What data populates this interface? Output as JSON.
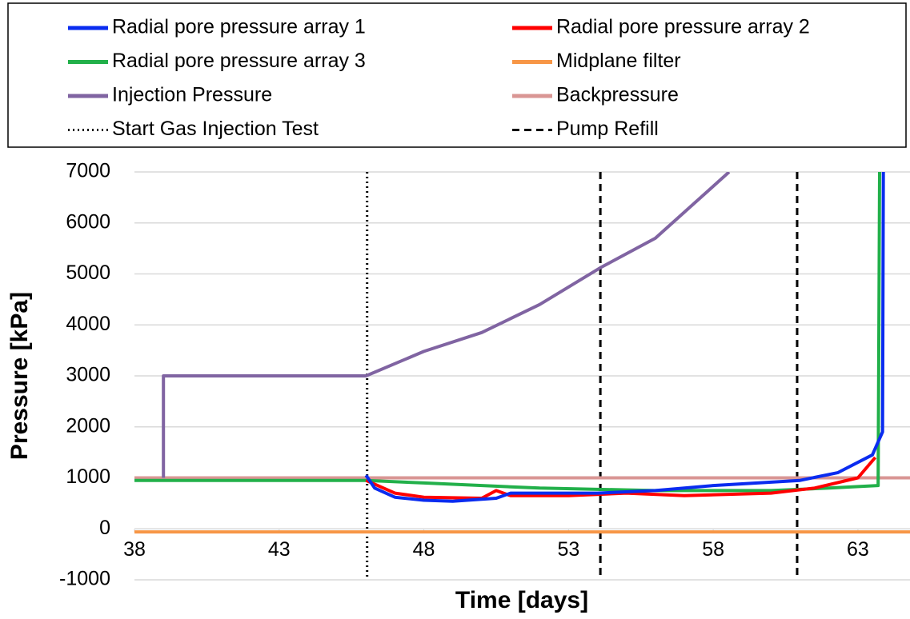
{
  "chart_data": {
    "type": "line",
    "x_label": "Time [days]",
    "y_label": "Pressure [kPa]",
    "xlim": [
      38,
      64.8
    ],
    "ylim": [
      -1000,
      7000
    ],
    "xticks": [
      38,
      43,
      48,
      53,
      58,
      63
    ],
    "yticks": [
      -1000,
      0,
      1000,
      2000,
      3000,
      4000,
      5000,
      6000,
      7000
    ],
    "grid": true,
    "legend": "top",
    "series": [
      {
        "name": "Radial pore pressure array 1",
        "color": "#0a2cf0",
        "x": [
          46.0,
          46.3,
          47,
          48,
          49,
          50.5,
          51,
          54,
          56,
          58,
          61,
          62.3,
          63.5,
          63.85,
          63.88
        ],
        "values": [
          1050,
          800,
          620,
          560,
          540,
          600,
          700,
          700,
          750,
          850,
          950,
          1100,
          1450,
          1900,
          7000
        ]
      },
      {
        "name": "Radial pore pressure array 2",
        "color": "#ff0000",
        "x": [
          46.0,
          47,
          48,
          50,
          50.5,
          51,
          53,
          55,
          57,
          60,
          61.5,
          63,
          63.6
        ],
        "values": [
          950,
          700,
          620,
          600,
          750,
          650,
          650,
          700,
          650,
          700,
          800,
          1000,
          1400
        ]
      },
      {
        "name": "Radial pore pressure array 3",
        "color": "#22b04a",
        "x": [
          38,
          46,
          48,
          52,
          56,
          60,
          62,
          63.7,
          63.75
        ],
        "values": [
          950,
          950,
          900,
          800,
          750,
          750,
          800,
          850,
          7000
        ]
      },
      {
        "name": "Midplane filter",
        "color": "#f79646",
        "x": [
          38,
          64.8
        ],
        "values": [
          -60,
          -60
        ]
      },
      {
        "name": "Injection Pressure",
        "color": "#8064a2",
        "x": [
          39.0,
          39.0,
          46.0,
          48,
          50,
          52,
          54.1,
          56,
          58.55
        ],
        "values": [
          1000,
          3000,
          3000,
          3480,
          3850,
          4400,
          5120,
          5700,
          7000
        ]
      },
      {
        "name": "Backpressure",
        "color": "#d99694",
        "x": [
          38,
          64.8
        ],
        "values": [
          1000,
          1000
        ]
      }
    ],
    "vlines": [
      {
        "name": "Start Gas Injection Test",
        "style": "dotted",
        "color": "#000000",
        "x": [
          46.04
        ]
      },
      {
        "name": "Pump Refill",
        "style": "dashed",
        "color": "#000000",
        "x": [
          54.1,
          60.9
        ]
      }
    ]
  }
}
